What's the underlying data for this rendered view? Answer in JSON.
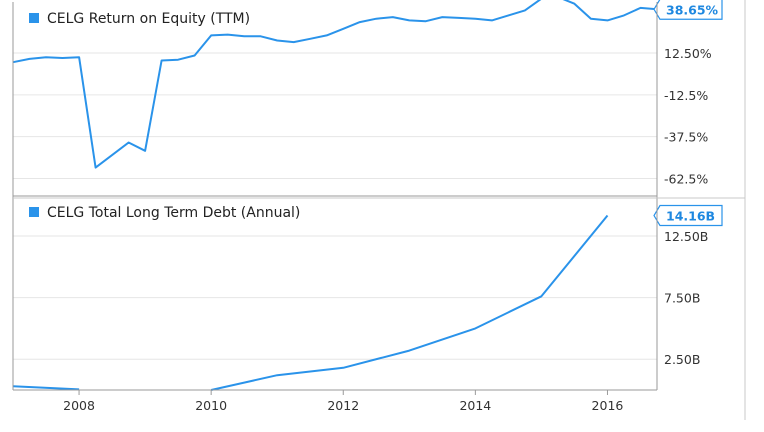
{
  "colors": {
    "series": "#2a93ea",
    "grid": "#e6e6e6",
    "plot_bg": "#ffffff",
    "axis": "#9a9a9a",
    "badge_text": "#1f88e0"
  },
  "chart_data": [
    {
      "type": "line",
      "title": "CELG Return on Equity (TTM)",
      "legend_label": "CELG Return on Equity (TTM)",
      "ylabel": "",
      "y_ticks": [
        "12.50%",
        "-12.5%",
        "-37.5%",
        "-62.5%"
      ],
      "y_tick_values": [
        12.5,
        -12.5,
        -37.5,
        -62.5
      ],
      "ylim": [
        -73,
        43
      ],
      "last_value_label": "38.65%",
      "x": [
        2007.0,
        2007.25,
        2007.5,
        2007.75,
        2008.0,
        2008.25,
        2008.75,
        2009.0,
        2009.25,
        2009.5,
        2009.75,
        2010.0,
        2010.25,
        2010.5,
        2010.75,
        2011.0,
        2011.25,
        2011.5,
        2011.75,
        2012.0,
        2012.25,
        2012.5,
        2012.75,
        2013.0,
        2013.25,
        2013.5,
        2013.75,
        2014.0,
        2014.25,
        2014.5,
        2014.75,
        2015.0,
        2015.25,
        2015.5,
        2015.75,
        2016.0,
        2016.25,
        2016.5,
        2016.75
      ],
      "values": [
        7,
        9,
        10,
        9.5,
        10,
        -56,
        -41,
        -46,
        8,
        8.5,
        11,
        23,
        23.5,
        22.5,
        22.5,
        20,
        19,
        21,
        23,
        27,
        31,
        33,
        34,
        32,
        31.5,
        34,
        33.5,
        33,
        32,
        35,
        38,
        45,
        46,
        42,
        33,
        32,
        35,
        39.5,
        38.65
      ]
    },
    {
      "type": "line",
      "title": "CELG Total Long Term Debt (Annual)",
      "legend_label": "CELG Total Long Term Debt (Annual)",
      "ylabel": "",
      "y_ticks": [
        "12.50B",
        "7.50B",
        "2.50B"
      ],
      "y_tick_values": [
        12.5,
        7.5,
        2.5
      ],
      "ylim": [
        0,
        15.5
      ],
      "last_value_label": "14.16B",
      "segments": [
        {
          "x": [
            2007.0,
            2008.0
          ],
          "values": [
            0.3,
            0.05
          ]
        },
        {
          "x": [
            2010.0,
            2011.0,
            2012.0,
            2013.0,
            2014.0,
            2015.0,
            2016.0
          ],
          "values": [
            0.0,
            1.2,
            1.8,
            3.2,
            5.0,
            7.6,
            14.16
          ]
        }
      ]
    }
  ],
  "x_axis": {
    "ticks": [
      "2008",
      "2010",
      "2012",
      "2014",
      "2016"
    ],
    "tick_values": [
      2008,
      2010,
      2012,
      2014,
      2016
    ],
    "xlim": [
      2007.0,
      2016.75
    ]
  }
}
